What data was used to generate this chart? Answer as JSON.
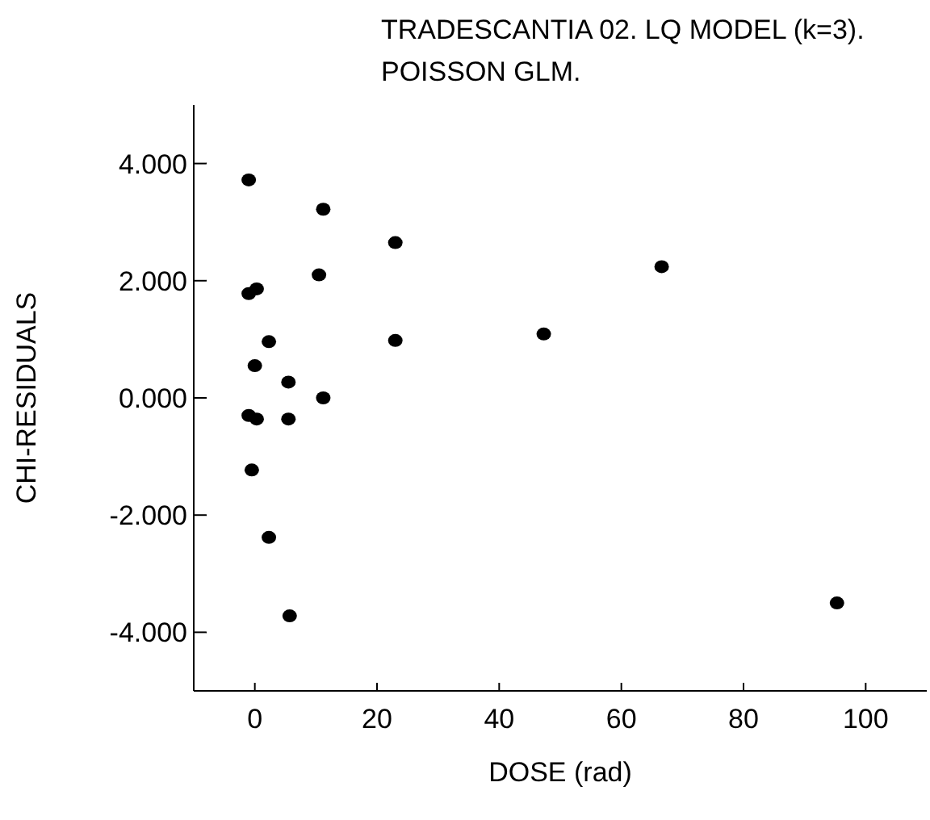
{
  "chart_data": {
    "type": "scatter",
    "title": "TRADESCANTIA 02. LQ MODEL (k=3).\nPOISSON GLM.",
    "xlabel": "DOSE (rad)",
    "ylabel": "CHI-RESIDUALS",
    "x": [
      -1,
      11.2,
      23,
      10.5,
      -1,
      0.3,
      2.3,
      23,
      0,
      5.5,
      -1,
      0.3,
      5.5,
      11.2,
      -0.5,
      2.3,
      5.7,
      47.3,
      66.6,
      95.3
    ],
    "series": [
      {
        "color": "#000000",
        "values": [
          3.72,
          3.22,
          2.65,
          2.1,
          1.78,
          1.86,
          0.96,
          0.98,
          0.55,
          0.27,
          -0.3,
          -0.36,
          -0.36,
          0.0,
          -1.23,
          -2.38,
          -3.72,
          1.09,
          2.24,
          -3.5
        ]
      }
    ],
    "xlim": [
      -10,
      110
    ],
    "xticks": [
      0,
      20,
      40,
      60,
      80,
      100
    ],
    "ylim": [
      -5,
      5
    ],
    "yticks": [
      {
        "value": -4,
        "label": "-4.000"
      },
      {
        "value": -2,
        "label": "-2.000"
      },
      {
        "value": 0,
        "label": "0.000"
      },
      {
        "value": 2,
        "label": "2.000"
      },
      {
        "value": 4,
        "label": "4.000"
      }
    ],
    "marker": "circle",
    "grid": false,
    "legend": false
  }
}
